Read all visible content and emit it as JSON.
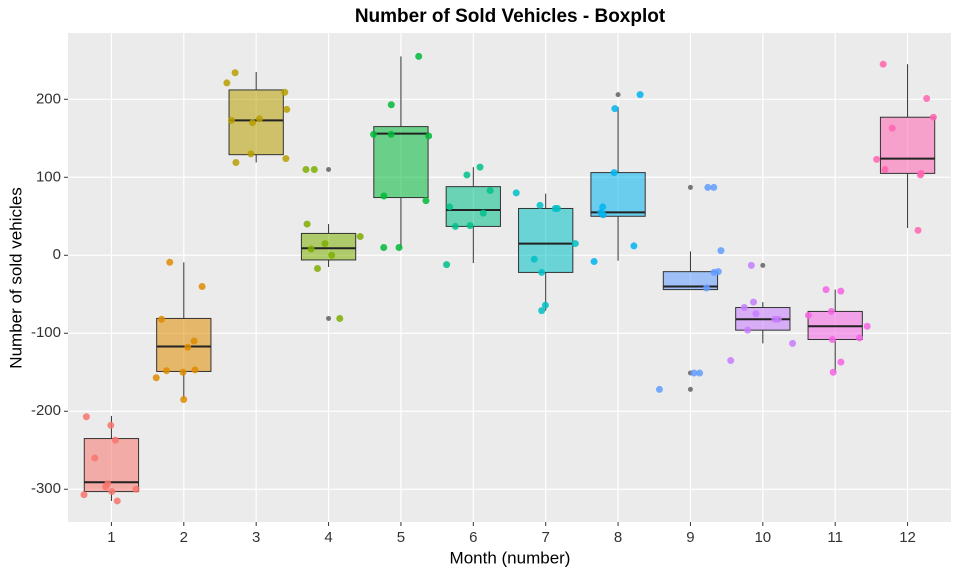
{
  "chart_data": {
    "type": "boxplot",
    "title": "Number of Sold Vehicles - Boxplot",
    "x_label": "Month (number)",
    "y_label": "Number of sold vehicles",
    "categories": [
      "1",
      "2",
      "3",
      "4",
      "5",
      "6",
      "7",
      "8",
      "9",
      "10",
      "11",
      "12"
    ],
    "colors": [
      "#F8766D",
      "#DE8C00",
      "#B79F00",
      "#7CAE00",
      "#00BA38",
      "#00C08B",
      "#00BFC4",
      "#00B4F0",
      "#619CFF",
      "#C77CFF",
      "#F564E3",
      "#FF64B0"
    ],
    "boxes": [
      {
        "whisker_low": -315,
        "q1": -303,
        "median": -291,
        "q3": -235,
        "whisker_high": -206,
        "outliers": [],
        "points": [
          -218,
          -237,
          -207,
          -260,
          -293,
          -303,
          -307,
          -300,
          -315,
          -297
        ]
      },
      {
        "whisker_low": -184,
        "q1": -149,
        "median": -117,
        "q3": -81,
        "whisker_high": -9,
        "outliers": [],
        "points": [
          -9,
          -40,
          -110,
          -157,
          -185,
          -148,
          -147,
          -82,
          -118,
          -150
        ]
      },
      {
        "whisker_low": 119,
        "q1": 129,
        "median": 173,
        "q3": 212,
        "whisker_high": 235,
        "outliers": [],
        "points": [
          234,
          221,
          209,
          187,
          173,
          170,
          124,
          119,
          130,
          175
        ]
      },
      {
        "whisker_low": -15,
        "q1": -6,
        "median": 9,
        "q3": 28,
        "whisker_high": 40,
        "outliers": [
          110,
          -81
        ],
        "points": [
          -81,
          110,
          40,
          24,
          15,
          8,
          0,
          -17,
          110
        ]
      },
      {
        "whisker_low": 10,
        "q1": 74,
        "median": 156,
        "q3": 165,
        "whisker_high": 255,
        "outliers": [],
        "points": [
          255,
          193,
          155,
          155,
          153,
          76,
          70,
          10,
          10
        ]
      },
      {
        "whisker_low": -10,
        "q1": 37,
        "median": 58,
        "q3": 88,
        "whisker_high": 113,
        "outliers": [],
        "points": [
          113,
          103,
          83,
          54,
          62,
          37,
          38,
          -12
        ]
      },
      {
        "whisker_low": -71,
        "q1": -22,
        "median": 15,
        "q3": 60,
        "whisker_high": 79,
        "outliers": [],
        "points": [
          80,
          64,
          60,
          60,
          15,
          -5,
          -22,
          -64,
          -71
        ]
      },
      {
        "whisker_low": -7,
        "q1": 50,
        "median": 55,
        "q3": 106,
        "whisker_high": 190,
        "outliers": [
          206
        ],
        "points": [
          206,
          188,
          106,
          62,
          55,
          12,
          -8,
          52
        ]
      },
      {
        "whisker_low": -44,
        "q1": -44,
        "median": -40,
        "q3": -21,
        "whisker_high": 5,
        "outliers": [
          87,
          -151,
          -172
        ],
        "points": [
          87,
          87,
          6,
          -21,
          -22,
          -42,
          -151,
          -151,
          -172
        ]
      },
      {
        "whisker_low": -113,
        "q1": -96,
        "median": -82,
        "q3": -67,
        "whisker_high": -60,
        "outliers": [
          -13
        ],
        "points": [
          -13,
          -60,
          -67,
          -75,
          -82,
          -82,
          -96,
          -113,
          -135
        ]
      },
      {
        "whisker_low": -150,
        "q1": -108,
        "median": -91,
        "q3": -72,
        "whisker_high": -44,
        "outliers": [],
        "points": [
          -44,
          -46,
          -72,
          -77,
          -91,
          -108,
          -106,
          -137,
          -150
        ]
      },
      {
        "whisker_low": 35,
        "q1": 105,
        "median": 124,
        "q3": 177,
        "whisker_high": 245,
        "outliers": [],
        "points": [
          245,
          201,
          177,
          163,
          123,
          110,
          105,
          103,
          32
        ]
      }
    ],
    "ylim": [
      -342,
      285
    ],
    "yticks": [
      -300,
      -200,
      -100,
      0,
      100,
      200
    ],
    "grid": true
  }
}
